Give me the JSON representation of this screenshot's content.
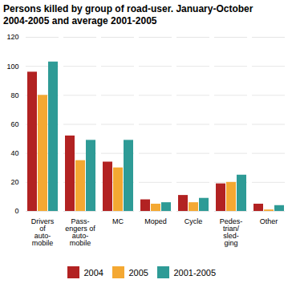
{
  "chart_data": {
    "type": "bar",
    "title": "Persons killed by group of road-user. January-October\n2004-2005 and average 2001-2005",
    "categories": [
      "Drivers\nof\nauto-\nmobile",
      "Pass-\nengers of\nauto-\nmobile",
      "MC",
      "Moped",
      "Cycle",
      "Pedes-\ntrian/\nsled-\nging",
      "Other"
    ],
    "series": [
      {
        "name": "2004",
        "color": "#B22222",
        "values": [
          96,
          52,
          34,
          8,
          11,
          19,
          5
        ]
      },
      {
        "name": "2005",
        "color": "#F4A832",
        "values": [
          80,
          35,
          30,
          5,
          6,
          20,
          1
        ]
      },
      {
        "name": "2001-2005",
        "color": "#2E9B96",
        "values": [
          103,
          49,
          49,
          6,
          9,
          25,
          4
        ]
      }
    ],
    "ylim": [
      0,
      120
    ],
    "yticks": [
      0,
      20,
      40,
      60,
      80,
      100,
      120
    ],
    "grid": true,
    "legend": "bottom"
  }
}
